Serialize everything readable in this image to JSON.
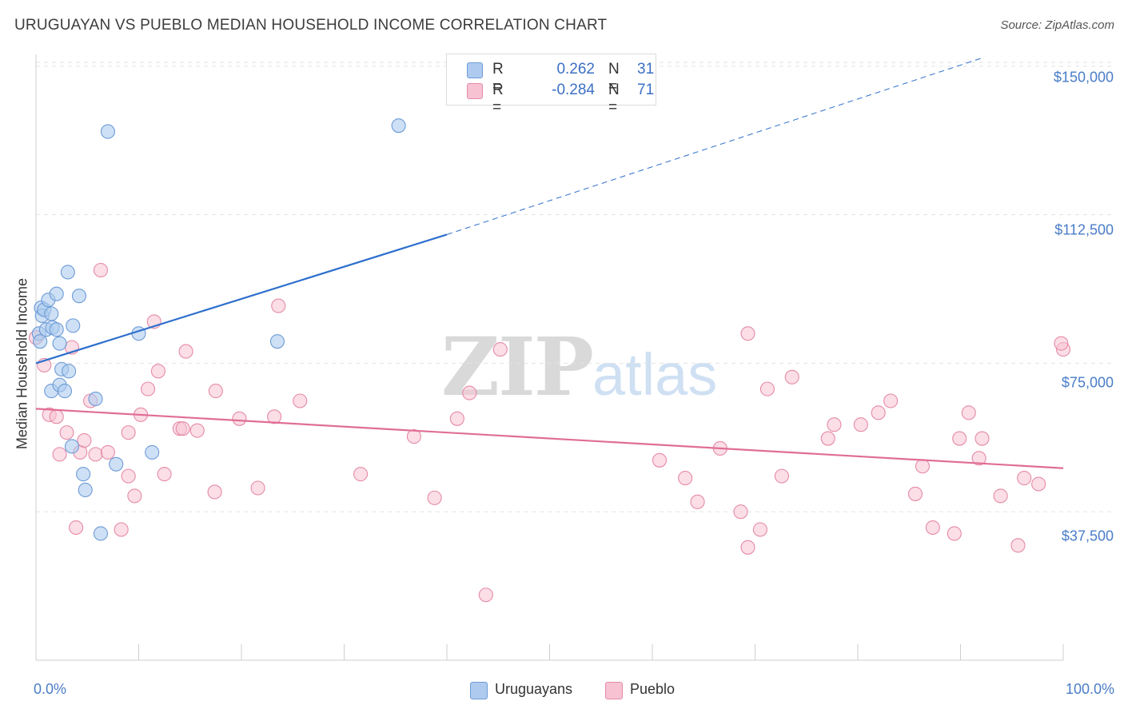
{
  "title": "URUGUAYAN VS PUEBLO MEDIAN HOUSEHOLD INCOME CORRELATION CHART",
  "source": "Source: ZipAtlas.com",
  "watermark": {
    "left": "ZIP",
    "right": "atlas"
  },
  "colors": {
    "uruguayans_fill": "#aecbef",
    "uruguayans_stroke": "#6c9bd6",
    "uruguayans_line": "#2e6fcd",
    "pueblo_fill": "#f7c2d2",
    "pueblo_stroke": "#e58aa7",
    "pueblo_line": "#e06e96",
    "tick_label": "#4a7dc8",
    "grid": "#e3e3e3"
  },
  "legend": {
    "rows": [
      {
        "r_label": "R =",
        "r_value": "0.262",
        "n_label": "N =",
        "n_value": "31"
      },
      {
        "r_label": "R =",
        "r_value": "-0.284",
        "n_label": "N =",
        "n_value": "71"
      }
    ]
  },
  "bottom_legend": [
    "Uruguayans",
    "Pueblo"
  ],
  "chart_data": {
    "type": "scatter",
    "title": "URUGUAYAN VS PUEBLO MEDIAN HOUSEHOLD INCOME CORRELATION CHART",
    "ylabel": "Median Household Income",
    "xlabel": "",
    "x_tick_labels": [
      "0.0%",
      "100.0%"
    ],
    "y_tick_labels": [
      "$37,500",
      "$75,000",
      "$112,500",
      "$150,000"
    ],
    "y_ticks": [
      37500,
      75000,
      112500,
      150000
    ],
    "xlim": [
      0,
      100
    ],
    "ylim": [
      0,
      153000
    ],
    "grid": "horizontal dashed",
    "legend_position": "top-center",
    "series": [
      {
        "name": "Uruguayans",
        "R": 0.262,
        "N": 31,
        "trend": {
          "x": [
            0,
            40
          ],
          "y": [
            75000,
            107500
          ],
          "extended_dashed_to": [
            92,
            152000
          ]
        },
        "points": [
          [
            0.3,
            82500
          ],
          [
            0.4,
            80500
          ],
          [
            0.5,
            89000
          ],
          [
            0.6,
            87000
          ],
          [
            0.8,
            88500
          ],
          [
            1.0,
            83500
          ],
          [
            1.2,
            91000
          ],
          [
            1.5,
            87500
          ],
          [
            1.6,
            84000
          ],
          [
            2.0,
            92500
          ],
          [
            2.0,
            83500
          ],
          [
            2.3,
            80000
          ],
          [
            1.5,
            68000
          ],
          [
            2.3,
            69500
          ],
          [
            2.5,
            73500
          ],
          [
            2.8,
            68000
          ],
          [
            3.2,
            73000
          ],
          [
            3.1,
            98000
          ],
          [
            3.6,
            84500
          ],
          [
            4.2,
            92000
          ],
          [
            3.5,
            54000
          ],
          [
            4.6,
            47000
          ],
          [
            4.8,
            43000
          ],
          [
            5.8,
            66000
          ],
          [
            6.3,
            32000
          ],
          [
            7.0,
            133500
          ],
          [
            7.8,
            49500
          ],
          [
            10.0,
            82500
          ],
          [
            11.3,
            52500
          ],
          [
            23.5,
            80500
          ],
          [
            35.3,
            135000
          ]
        ]
      },
      {
        "name": "Pueblo",
        "R": -0.284,
        "N": 71,
        "trend": {
          "x": [
            0,
            100
          ],
          "y": [
            63500,
            48500
          ]
        },
        "points": [
          [
            0.0,
            81500
          ],
          [
            0.8,
            74500
          ],
          [
            1.3,
            62000
          ],
          [
            2.0,
            61500
          ],
          [
            2.3,
            52000
          ],
          [
            3.0,
            57500
          ],
          [
            3.5,
            79000
          ],
          [
            3.9,
            33500
          ],
          [
            4.3,
            52500
          ],
          [
            4.7,
            55500
          ],
          [
            5.3,
            65500
          ],
          [
            5.8,
            52000
          ],
          [
            6.3,
            98500
          ],
          [
            7.0,
            52500
          ],
          [
            8.3,
            33000
          ],
          [
            9.0,
            46500
          ],
          [
            9.0,
            57500
          ],
          [
            9.6,
            41500
          ],
          [
            10.2,
            62000
          ],
          [
            10.9,
            68500
          ],
          [
            11.5,
            85500
          ],
          [
            11.9,
            73000
          ],
          [
            12.5,
            47000
          ],
          [
            14.0,
            58500
          ],
          [
            14.3,
            58500
          ],
          [
            14.6,
            78000
          ],
          [
            15.7,
            58000
          ],
          [
            17.4,
            42500
          ],
          [
            17.5,
            68000
          ],
          [
            19.8,
            61000
          ],
          [
            21.6,
            43500
          ],
          [
            23.2,
            61500
          ],
          [
            23.6,
            89500
          ],
          [
            25.7,
            65500
          ],
          [
            31.6,
            47000
          ],
          [
            36.8,
            56500
          ],
          [
            38.8,
            41000
          ],
          [
            41.0,
            61000
          ],
          [
            42.2,
            67500
          ],
          [
            43.8,
            16500
          ],
          [
            45.2,
            78500
          ],
          [
            60.7,
            50500
          ],
          [
            63.2,
            46000
          ],
          [
            64.4,
            40000
          ],
          [
            66.6,
            53500
          ],
          [
            68.6,
            37500
          ],
          [
            69.3,
            28500
          ],
          [
            69.3,
            82500
          ],
          [
            70.5,
            33000
          ],
          [
            71.2,
            68500
          ],
          [
            72.6,
            46500
          ],
          [
            73.6,
            71500
          ],
          [
            77.1,
            56000
          ],
          [
            77.7,
            59500
          ],
          [
            80.3,
            59500
          ],
          [
            82.0,
            62500
          ],
          [
            83.2,
            65500
          ],
          [
            85.6,
            42000
          ],
          [
            86.3,
            49000
          ],
          [
            87.3,
            33500
          ],
          [
            89.4,
            32000
          ],
          [
            89.9,
            56000
          ],
          [
            90.8,
            62500
          ],
          [
            91.8,
            51000
          ],
          [
            92.1,
            56000
          ],
          [
            93.9,
            41500
          ],
          [
            95.6,
            29000
          ],
          [
            96.2,
            46000
          ],
          [
            97.6,
            44500
          ],
          [
            100.0,
            78500
          ],
          [
            99.8,
            80000
          ]
        ]
      }
    ]
  }
}
